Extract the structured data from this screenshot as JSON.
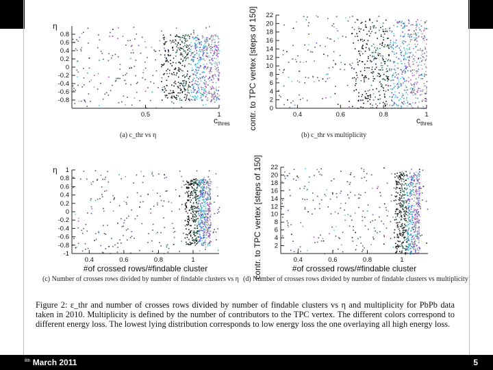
{
  "colors": {
    "frame_black": "#000000",
    "scatter_palette": [
      "#111111",
      "#2b6f5a",
      "#3aa0b0",
      "#5ad0e8",
      "#6a4fd8",
      "#c040c0",
      "#ffffff",
      "#9a9a9a"
    ]
  },
  "chart_data": [
    {
      "type": "scatter",
      "panel": "a",
      "xlabel": "c_thres",
      "ylabel": "η",
      "xlim": [
        0.0,
        1.0
      ],
      "ylim": [
        -1.0,
        1.0
      ],
      "xticks": [
        "0.5",
        "1"
      ],
      "yticks": [
        "0.8",
        "0.6",
        "0.4",
        "0.2",
        "0",
        "-0.2",
        "-0.4",
        "-0.6",
        "-0.8"
      ],
      "dense_region": {
        "x_from": 0.6,
        "x_to": 1.0,
        "y_from": -0.8,
        "y_to": 0.8
      },
      "subcaption": "(a) c_thr vs η"
    },
    {
      "type": "scatter",
      "panel": "b",
      "xlabel": "c_thres",
      "ylabel": "contr. to TPC vertex [steps of 150]",
      "xlim": [
        0.3,
        1.0
      ],
      "ylim": [
        0,
        22
      ],
      "xticks": [
        "0.4",
        "0.6",
        "0.8",
        "1"
      ],
      "yticks": [
        "22",
        "20",
        "18",
        "16",
        "14",
        "12",
        "10",
        "8",
        "6",
        "4",
        "2",
        "0"
      ],
      "dense_region": {
        "x_from": 0.65,
        "x_to": 1.0,
        "y_from": 0,
        "y_to": 21
      },
      "subcaption": "(b) c_thr vs multiplicity"
    },
    {
      "type": "scatter",
      "panel": "c",
      "xlabel": "#of crossed rows/#findable cluster",
      "ylabel": "η",
      "xlim": [
        0.3,
        1.15
      ],
      "ylim": [
        -1.0,
        1.0
      ],
      "xticks": [
        "0.4",
        "0.6",
        "0.8",
        "1"
      ],
      "yticks": [
        "1",
        "0.8",
        "0.6",
        "0.4",
        "0.2",
        "0",
        "-0.2",
        "-0.4",
        "-0.6",
        "-0.8",
        "-1"
      ],
      "dense_region": {
        "x_from": 0.95,
        "x_to": 1.1,
        "y_from": -0.8,
        "y_to": 0.8
      },
      "subcaption": "(c) Number of crosses rows divided by number of findable clusters vs η"
    },
    {
      "type": "scatter",
      "panel": "d",
      "xlabel": "#of crossed rows/#findable cluster",
      "ylabel": "contr. to TPC vertex [steps of 150]",
      "xlim": [
        0.3,
        1.15
      ],
      "ylim": [
        0,
        22
      ],
      "xticks": [
        "0.4",
        "0.6",
        "0.8",
        "1"
      ],
      "yticks": [
        "22",
        "20",
        "18",
        "16",
        "14",
        "12",
        "10",
        "8",
        "6",
        "4",
        "2"
      ],
      "dense_region": {
        "x_from": 0.95,
        "x_to": 1.1,
        "y_from": 0,
        "y_to": 21
      },
      "subcaption": "(d) Number of crosses rows divided by number of findable clusters vs multiplicity"
    }
  ],
  "caption": "Figure 2: ε_thr and number of crosses rows divided by number of findable clusters vs η and multiplicity for PbPb data taken in 2010. Multiplicity is defined by the number of contributors to the TPC vertex. The different colors correspond to different energy loss. The lowest lying distribution corresponds to low energy loss the one overlaying all high energy loss.",
  "footer": {
    "date_sup": "8th",
    "date": "March 2011",
    "page": "5"
  }
}
